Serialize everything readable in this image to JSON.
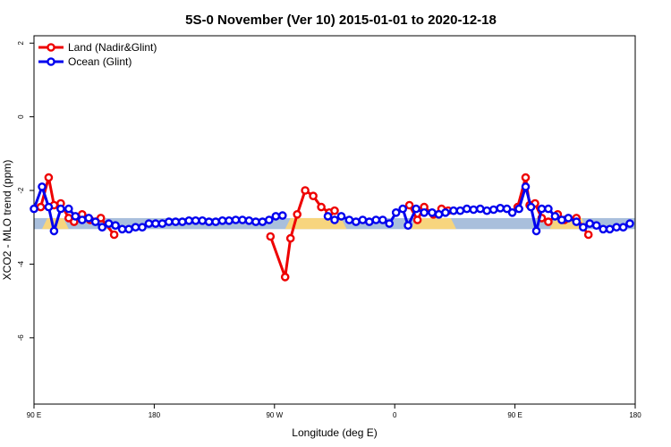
{
  "chart_data": {
    "type": "line",
    "title": "5S-0 November (Ver 10)   2015-01-01 to 2020-12-18",
    "xlabel": "Longitude (deg E)",
    "ylabel": "XCO2 - MLO trend (ppm)",
    "xlim": [
      90,
      540
    ],
    "ylim": [
      -7.8,
      2.2
    ],
    "x_ticks": [
      {
        "value": 90,
        "label": "90 E"
      },
      {
        "value": 180,
        "label": "180"
      },
      {
        "value": 270,
        "label": "90 W"
      },
      {
        "value": 360,
        "label": "0"
      },
      {
        "value": 450,
        "label": "90 E"
      },
      {
        "value": 540,
        "label": "180"
      }
    ],
    "y_ticks": [
      {
        "value": 2,
        "label": "2"
      },
      {
        "value": 0,
        "label": "0"
      },
      {
        "value": -2,
        "label": "-2"
      },
      {
        "value": -4,
        "label": "-4"
      },
      {
        "value": -6,
        "label": "-6"
      }
    ],
    "grid": false,
    "legend_position": "top-left",
    "background_bands": {
      "blue_color": "#a9bfdc",
      "yellow_color": "#f7d57e",
      "blue": {
        "ymin": -3.05,
        "ymax": -2.75,
        "xranges": [
          [
            90,
            540
          ]
        ]
      },
      "yellow": {
        "ymin": -3.05,
        "ymax": -2.75,
        "xranges": [
          [
            100,
            112
          ],
          [
            282,
            320
          ],
          [
            376,
            402
          ],
          [
            480,
            500
          ]
        ]
      }
    },
    "series": [
      {
        "name": "Land (Nadir&Glint)",
        "color": "#ee0000",
        "segments": [
          [
            [
              95,
              -2.45
            ],
            [
              101,
              -1.65
            ],
            [
              105,
              -2.4
            ],
            [
              110,
              -2.35
            ],
            [
              116,
              -2.75
            ],
            [
              120,
              -2.85
            ],
            [
              126,
              -2.65
            ],
            [
              132,
              -2.8
            ],
            [
              140,
              -2.75
            ],
            [
              150,
              -3.2
            ]
          ],
          [
            [
              267,
              -3.25
            ],
            [
              278,
              -4.35
            ],
            [
              282,
              -3.3
            ],
            [
              287,
              -2.65
            ],
            [
              293,
              -2.0
            ],
            [
              299,
              -2.15
            ],
            [
              305,
              -2.45
            ],
            [
              311,
              -2.6
            ],
            [
              315,
              -2.55
            ]
          ],
          [
            [
              371,
              -2.4
            ],
            [
              377,
              -2.8
            ],
            [
              382,
              -2.45
            ],
            [
              389,
              -2.65
            ],
            [
              395,
              -2.5
            ],
            [
              400,
              -2.55
            ]
          ],
          [
            [
              452,
              -2.45
            ],
            [
              458,
              -1.65
            ],
            [
              461,
              -2.4
            ],
            [
              465,
              -2.35
            ],
            [
              470,
              -2.75
            ],
            [
              475,
              -2.85
            ],
            [
              482,
              -2.65
            ],
            [
              487,
              -2.8
            ],
            [
              496,
              -2.75
            ],
            [
              505,
              -3.2
            ]
          ]
        ]
      },
      {
        "name": "Ocean (Glint)",
        "color": "#0000ee",
        "segments": [
          [
            [
              90,
              -2.5
            ],
            [
              96,
              -1.9
            ],
            [
              101,
              -2.45
            ],
            [
              105,
              -3.1
            ],
            [
              110,
              -2.5
            ],
            [
              116,
              -2.5
            ],
            [
              121,
              -2.7
            ],
            [
              126,
              -2.8
            ],
            [
              131,
              -2.75
            ],
            [
              136,
              -2.85
            ],
            [
              141,
              -3.0
            ],
            [
              146,
              -2.9
            ],
            [
              151,
              -2.95
            ],
            [
              156,
              -3.05
            ],
            [
              161,
              -3.05
            ],
            [
              166,
              -3.0
            ],
            [
              171,
              -3.0
            ],
            [
              176,
              -2.9
            ],
            [
              181,
              -2.9
            ],
            [
              186,
              -2.9
            ],
            [
              191,
              -2.85
            ],
            [
              196,
              -2.85
            ],
            [
              201,
              -2.85
            ],
            [
              206,
              -2.82
            ],
            [
              211,
              -2.82
            ],
            [
              216,
              -2.82
            ],
            [
              221,
              -2.85
            ],
            [
              226,
              -2.85
            ],
            [
              231,
              -2.82
            ],
            [
              236,
              -2.82
            ],
            [
              241,
              -2.8
            ],
            [
              246,
              -2.8
            ],
            [
              251,
              -2.82
            ],
            [
              256,
              -2.85
            ],
            [
              261,
              -2.85
            ],
            [
              266,
              -2.8
            ],
            [
              271,
              -2.7
            ],
            [
              276,
              -2.68
            ]
          ],
          [
            [
              310,
              -2.7
            ],
            [
              315,
              -2.8
            ],
            [
              320,
              -2.7
            ],
            [
              326,
              -2.8
            ],
            [
              331,
              -2.85
            ],
            [
              336,
              -2.8
            ],
            [
              341,
              -2.85
            ],
            [
              346,
              -2.8
            ],
            [
              351,
              -2.8
            ],
            [
              356,
              -2.9
            ],
            [
              361,
              -2.6
            ],
            [
              366,
              -2.5
            ],
            [
              370,
              -2.95
            ],
            [
              376,
              -2.5
            ],
            [
              382,
              -2.6
            ],
            [
              388,
              -2.6
            ],
            [
              393,
              -2.65
            ],
            [
              398,
              -2.6
            ],
            [
              404,
              -2.55
            ],
            [
              409,
              -2.55
            ],
            [
              414,
              -2.5
            ],
            [
              419,
              -2.52
            ],
            [
              424,
              -2.5
            ],
            [
              429,
              -2.55
            ],
            [
              434,
              -2.52
            ],
            [
              439,
              -2.48
            ],
            [
              444,
              -2.5
            ],
            [
              448,
              -2.6
            ],
            [
              453,
              -2.5
            ],
            [
              458,
              -1.9
            ],
            [
              462,
              -2.45
            ],
            [
              466,
              -3.1
            ],
            [
              470,
              -2.5
            ],
            [
              475,
              -2.5
            ],
            [
              480,
              -2.7
            ],
            [
              485,
              -2.8
            ],
            [
              490,
              -2.75
            ],
            [
              496,
              -2.85
            ],
            [
              501,
              -3.0
            ],
            [
              506,
              -2.9
            ],
            [
              511,
              -2.95
            ],
            [
              516,
              -3.05
            ],
            [
              521,
              -3.05
            ],
            [
              526,
              -3.0
            ],
            [
              531,
              -3.0
            ],
            [
              536,
              -2.9
            ]
          ]
        ]
      }
    ]
  }
}
